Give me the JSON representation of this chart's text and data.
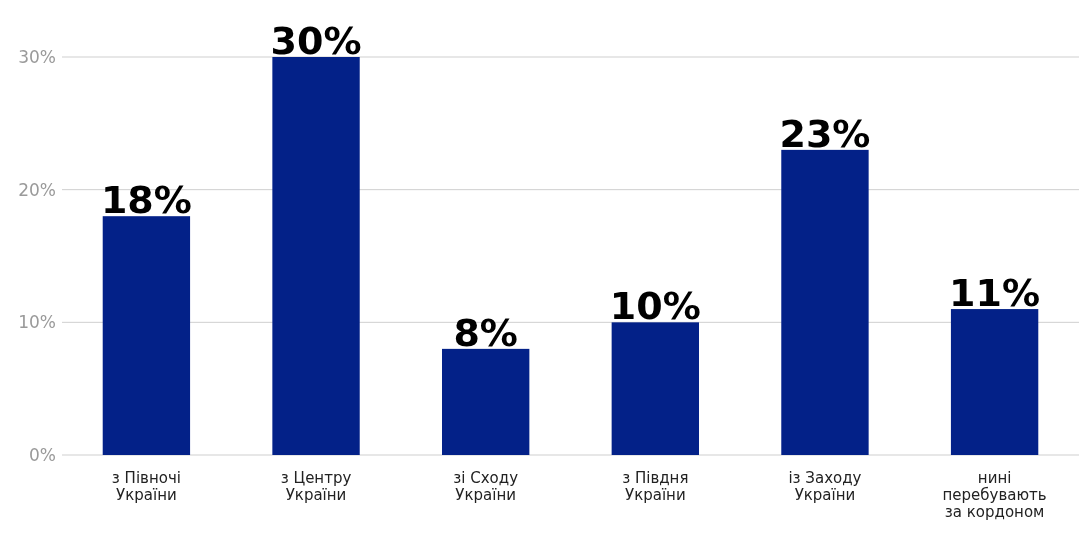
{
  "chart_data": {
    "type": "bar",
    "categories": [
      "з Півночі України",
      "з Центру України",
      "зі Сходу України",
      "з Півдня України",
      "із Заходу України",
      "нині перебувають за кордоном"
    ],
    "values": [
      18,
      30,
      8,
      10,
      23,
      11
    ],
    "color": "#032188",
    "ylim": [
      0,
      30
    ],
    "yticks": [
      {
        "value": 0,
        "label": "0%"
      },
      {
        "value": 10,
        "label": "10%"
      },
      {
        "value": 20,
        "label": "20%"
      },
      {
        "value": 30,
        "label": "30%"
      }
    ],
    "grid": "y",
    "value_labels": [
      "18%",
      "30%",
      "8%",
      "10%",
      "23%",
      "11%"
    ]
  }
}
